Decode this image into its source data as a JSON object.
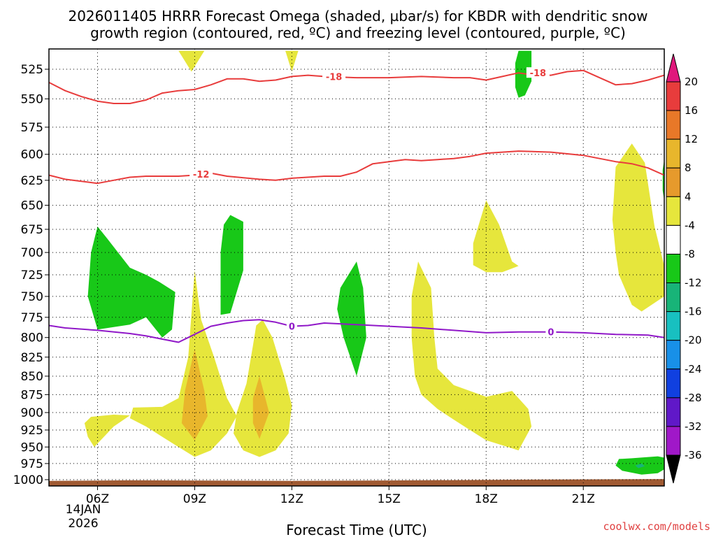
{
  "chart_data": {
    "type": "time-height-contour",
    "title_line1": "2026011405 HRRR Forecast Omega (shaded, µbar/s) for KBDR with dendritic snow",
    "title_line2": "growth region (contoured, red, ºC) and freezing level (contoured, purple, ºC)",
    "xlabel": "Forecast Time (UTC)",
    "credit": "coolwx.com/models",
    "x_range_hours": [
      4.5,
      23.5
    ],
    "y_range_hpa": [
      1005,
      510
    ],
    "x_ticks": [
      {
        "hour": 6,
        "label": "06Z"
      },
      {
        "hour": 9,
        "label": "09Z"
      },
      {
        "hour": 12,
        "label": "12Z"
      },
      {
        "hour": 15,
        "label": "15Z"
      },
      {
        "hour": 18,
        "label": "18Z"
      },
      {
        "hour": 21,
        "label": "21Z"
      }
    ],
    "x_date_label": [
      "14JAN",
      "2026"
    ],
    "y_ticks": [
      525,
      550,
      575,
      600,
      625,
      650,
      675,
      700,
      725,
      750,
      775,
      800,
      825,
      850,
      875,
      900,
      925,
      950,
      975,
      1000
    ],
    "colorbar": {
      "labels": [
        "20",
        "16",
        "12",
        "8",
        "4",
        "-4",
        "-8",
        "-12",
        "-16",
        "-20",
        "-24",
        "-28",
        "-32",
        "-36"
      ],
      "colors": [
        "#e8b62c",
        "#e69a2c",
        "#e6e63c",
        "#ffffff",
        "#18c818",
        "#18b478",
        "#18c0c0",
        "#1890e8",
        "#1040e0",
        "#6018c8",
        "#a018c8",
        "#a0a0a0"
      ],
      "top_arrow_color": "#e0187c",
      "top_box_color": "#e83c3c",
      "upper_box_color": "#e87828",
      "bottom_arrow_color": "#000000"
    },
    "contour_dgz_red": [
      {
        "label": "-18",
        "color": "#e83c3c",
        "points": [
          [
            4.5,
            536
          ],
          [
            5.0,
            543
          ],
          [
            5.5,
            548
          ],
          [
            6.0,
            552
          ],
          [
            6.5,
            554
          ],
          [
            7.0,
            554
          ],
          [
            7.5,
            551
          ],
          [
            8.0,
            545
          ],
          [
            8.5,
            543
          ],
          [
            9.0,
            542
          ],
          [
            9.5,
            538
          ],
          [
            10.0,
            533
          ],
          [
            10.5,
            533
          ],
          [
            11.0,
            535
          ],
          [
            11.5,
            534
          ],
          [
            12.0,
            531
          ],
          [
            12.5,
            530
          ],
          [
            13.0,
            531
          ],
          [
            14.0,
            532
          ],
          [
            15.0,
            532
          ],
          [
            16.0,
            531
          ],
          [
            17.0,
            532
          ],
          [
            17.5,
            532
          ],
          [
            18.0,
            534
          ],
          [
            18.5,
            531
          ],
          [
            19.0,
            528
          ],
          [
            19.5,
            530
          ],
          [
            20.0,
            530
          ],
          [
            20.5,
            527
          ],
          [
            21.0,
            526
          ],
          [
            21.5,
            532
          ],
          [
            22.0,
            538
          ],
          [
            22.5,
            537
          ],
          [
            23.0,
            534
          ],
          [
            23.5,
            530
          ]
        ]
      },
      {
        "label": "-12",
        "color": "#e83c3c",
        "points": [
          [
            4.5,
            620
          ],
          [
            5.0,
            624
          ],
          [
            6.0,
            628
          ],
          [
            6.5,
            625
          ],
          [
            7.0,
            622
          ],
          [
            7.5,
            621
          ],
          [
            8.0,
            621
          ],
          [
            8.5,
            621
          ],
          [
            9.0,
            620
          ],
          [
            9.5,
            618
          ],
          [
            10.0,
            621
          ],
          [
            11.0,
            624
          ],
          [
            11.5,
            625
          ],
          [
            12.0,
            623
          ],
          [
            13.0,
            621
          ],
          [
            13.5,
            621
          ],
          [
            14.0,
            617
          ],
          [
            14.5,
            609
          ],
          [
            15.0,
            607
          ],
          [
            15.5,
            605
          ],
          [
            16.0,
            606
          ],
          [
            16.5,
            605
          ],
          [
            17.0,
            604
          ],
          [
            17.5,
            602
          ],
          [
            18.0,
            599
          ],
          [
            19.0,
            597
          ],
          [
            20.0,
            598
          ],
          [
            21.0,
            601
          ],
          [
            21.5,
            604
          ],
          [
            22.0,
            607
          ],
          [
            22.5,
            609
          ],
          [
            23.0,
            613
          ],
          [
            23.5,
            620
          ]
        ]
      },
      {
        "label": "0",
        "color": "#9018c8",
        "points": [
          [
            4.5,
            785
          ],
          [
            5.0,
            788
          ],
          [
            6.0,
            791
          ],
          [
            7.0,
            795
          ],
          [
            7.5,
            798
          ],
          [
            8.0,
            802
          ],
          [
            8.5,
            806
          ],
          [
            9.0,
            796
          ],
          [
            9.5,
            786
          ],
          [
            10.0,
            782
          ],
          [
            10.5,
            779
          ],
          [
            11.0,
            778
          ],
          [
            11.5,
            781
          ],
          [
            12.0,
            786
          ],
          [
            12.5,
            785
          ],
          [
            13.0,
            782
          ],
          [
            14.0,
            784
          ],
          [
            15.0,
            786
          ],
          [
            16.0,
            788
          ],
          [
            17.0,
            791
          ],
          [
            18.0,
            794
          ],
          [
            19.0,
            793
          ],
          [
            20.0,
            793
          ],
          [
            21.0,
            794
          ],
          [
            22.0,
            796
          ],
          [
            23.0,
            797
          ],
          [
            23.5,
            800
          ]
        ]
      }
    ],
    "contour_label_positions": [
      {
        "label": "-18",
        "hour": 13.3,
        "hpa": 531
      },
      {
        "label": "-18",
        "hour": 19.6,
        "hpa": 528
      },
      {
        "label": "-12",
        "hour": 9.2,
        "hpa": 619
      },
      {
        "label": "0",
        "hour": 12.0,
        "hpa": 786
      },
      {
        "label": "0",
        "hour": 20.0,
        "hpa": 793
      }
    ],
    "omega_regions": [
      {
        "value_range": "4 to 8",
        "color": "#e6e63c",
        "points": [
          [
            8.5,
            510
          ],
          [
            9.3,
            510
          ],
          [
            8.9,
            527
          ]
        ]
      },
      {
        "value_range": "4 to 8",
        "color": "#e6e63c",
        "points": [
          [
            11.8,
            510
          ],
          [
            12.2,
            510
          ],
          [
            12.0,
            527
          ]
        ]
      },
      {
        "value_range": "-8 to -4",
        "color": "#18c818",
        "points": [
          [
            19.0,
            510
          ],
          [
            19.4,
            510
          ],
          [
            19.4,
            535
          ],
          [
            19.2,
            547
          ],
          [
            19.0,
            549
          ],
          [
            18.9,
            540
          ],
          [
            18.9,
            520
          ]
        ]
      },
      {
        "value_range": "-8 to -4",
        "color": "#18c818",
        "points": [
          [
            6.0,
            672
          ],
          [
            5.8,
            700
          ],
          [
            5.7,
            750
          ],
          [
            6.0,
            790
          ],
          [
            7.0,
            784
          ],
          [
            7.5,
            775
          ],
          [
            8.0,
            800
          ],
          [
            8.3,
            790
          ],
          [
            8.4,
            745
          ],
          [
            7.9,
            733
          ],
          [
            7.5,
            725
          ],
          [
            7.0,
            717
          ],
          [
            6.3,
            685
          ]
        ]
      },
      {
        "value_range": "-8 to -4",
        "color": "#18c818",
        "points": [
          [
            10.1,
            660
          ],
          [
            10.5,
            667
          ],
          [
            10.5,
            720
          ],
          [
            10.1,
            770
          ],
          [
            9.8,
            772
          ],
          [
            9.8,
            700
          ],
          [
            9.9,
            670
          ]
        ]
      },
      {
        "value_range": "-8 to -4",
        "color": "#18c818",
        "points": [
          [
            14.0,
            710
          ],
          [
            14.2,
            740
          ],
          [
            14.3,
            800
          ],
          [
            14.0,
            850
          ],
          [
            13.6,
            800
          ],
          [
            13.4,
            765
          ],
          [
            13.5,
            740
          ]
        ]
      },
      {
        "value_range": "-8 to -4",
        "color": "#18c818",
        "points": [
          [
            22.5,
            967
          ],
          [
            23.3,
            964
          ],
          [
            23.5,
            966
          ],
          [
            23.5,
            984
          ],
          [
            23.3,
            990
          ],
          [
            22.8,
            992
          ],
          [
            22.2,
            986
          ],
          [
            22.0,
            978
          ],
          [
            22.1,
            968
          ]
        ]
      },
      {
        "value_range": "-12 to -8",
        "color": "#18b478",
        "points": [
          [
            22.6,
            978
          ],
          [
            22.8,
            975
          ],
          [
            22.9,
            979
          ],
          [
            22.7,
            982
          ]
        ]
      },
      {
        "value_range": "4 to 8",
        "color": "#e6e63c",
        "points": [
          [
            5.8,
            906
          ],
          [
            6.5,
            903
          ],
          [
            7.0,
            904
          ],
          [
            6.5,
            920
          ],
          [
            5.9,
            950
          ],
          [
            5.7,
            935
          ],
          [
            5.6,
            915
          ]
        ]
      },
      {
        "value_range": "4 to 8",
        "color": "#e6e63c",
        "points": [
          [
            7.1,
            893
          ],
          [
            8.0,
            892
          ],
          [
            8.5,
            880
          ],
          [
            8.8,
            825
          ],
          [
            9.0,
            720
          ],
          [
            9.2,
            778
          ],
          [
            9.6,
            825
          ],
          [
            10.0,
            880
          ],
          [
            10.3,
            905
          ],
          [
            10.0,
            930
          ],
          [
            9.5,
            955
          ],
          [
            9.0,
            965
          ],
          [
            8.5,
            950
          ],
          [
            8.0,
            935
          ],
          [
            7.5,
            920
          ],
          [
            7.0,
            908
          ]
        ]
      },
      {
        "value_range": "8 to 12",
        "color": "#e8b62c",
        "points": [
          [
            9.0,
            815
          ],
          [
            9.3,
            870
          ],
          [
            9.4,
            905
          ],
          [
            9.0,
            940
          ],
          [
            8.6,
            915
          ],
          [
            8.7,
            870
          ]
        ]
      },
      {
        "value_range": "4 to 8",
        "color": "#e6e63c",
        "points": [
          [
            11.1,
            778
          ],
          [
            11.4,
            800
          ],
          [
            11.8,
            855
          ],
          [
            12.0,
            890
          ],
          [
            11.9,
            930
          ],
          [
            11.5,
            955
          ],
          [
            11.0,
            965
          ],
          [
            10.5,
            955
          ],
          [
            10.2,
            930
          ],
          [
            10.3,
            900
          ],
          [
            10.6,
            860
          ],
          [
            10.8,
            810
          ],
          [
            10.9,
            785
          ]
        ]
      },
      {
        "value_range": "8 to 12",
        "color": "#e8b62c",
        "points": [
          [
            11.0,
            850
          ],
          [
            11.3,
            900
          ],
          [
            11.0,
            938
          ],
          [
            10.8,
            915
          ],
          [
            10.8,
            880
          ]
        ]
      },
      {
        "value_range": "4 to 8",
        "color": "#e6e63c",
        "points": [
          [
            15.9,
            710
          ],
          [
            16.3,
            740
          ],
          [
            16.4,
            800
          ],
          [
            16.5,
            840
          ],
          [
            17.0,
            862
          ],
          [
            18.0,
            878
          ],
          [
            18.8,
            870
          ],
          [
            19.3,
            895
          ],
          [
            19.4,
            920
          ],
          [
            19.0,
            955
          ],
          [
            18.0,
            940
          ],
          [
            17.5,
            925
          ],
          [
            17.0,
            910
          ],
          [
            16.5,
            895
          ],
          [
            16.0,
            875
          ],
          [
            15.8,
            850
          ],
          [
            15.7,
            800
          ],
          [
            15.7,
            750
          ]
        ]
      },
      {
        "value_range": "4 to 8",
        "color": "#e6e63c",
        "points": [
          [
            18.0,
            645
          ],
          [
            18.4,
            670
          ],
          [
            18.8,
            710
          ],
          [
            19.0,
            715
          ],
          [
            18.5,
            722
          ],
          [
            18.0,
            722
          ],
          [
            17.6,
            714
          ],
          [
            17.6,
            690
          ],
          [
            17.8,
            667
          ]
        ]
      },
      {
        "value_range": "4 to 8",
        "color": "#e6e63c",
        "points": [
          [
            22.0,
            612
          ],
          [
            22.5,
            590
          ],
          [
            22.9,
            608
          ],
          [
            23.2,
            672
          ],
          [
            23.5,
            715
          ],
          [
            23.5,
            750
          ],
          [
            22.8,
            768
          ],
          [
            22.5,
            760
          ],
          [
            22.1,
            725
          ],
          [
            22.0,
            700
          ],
          [
            21.9,
            665
          ]
        ]
      },
      {
        "value_range": "-8 to -4",
        "color": "#18c818",
        "points": [
          [
            23.5,
            605
          ],
          [
            23.5,
            645
          ],
          [
            23.45,
            635
          ],
          [
            23.45,
            615
          ]
        ]
      }
    ],
    "ground_color": "#a05a32",
    "ground_top_hpa": [
      [
        4.5,
        1002
      ],
      [
        7.0,
        1001
      ],
      [
        12.0,
        1002
      ],
      [
        16.0,
        1001
      ],
      [
        19.0,
        1000
      ],
      [
        23.5,
        999
      ]
    ]
  }
}
